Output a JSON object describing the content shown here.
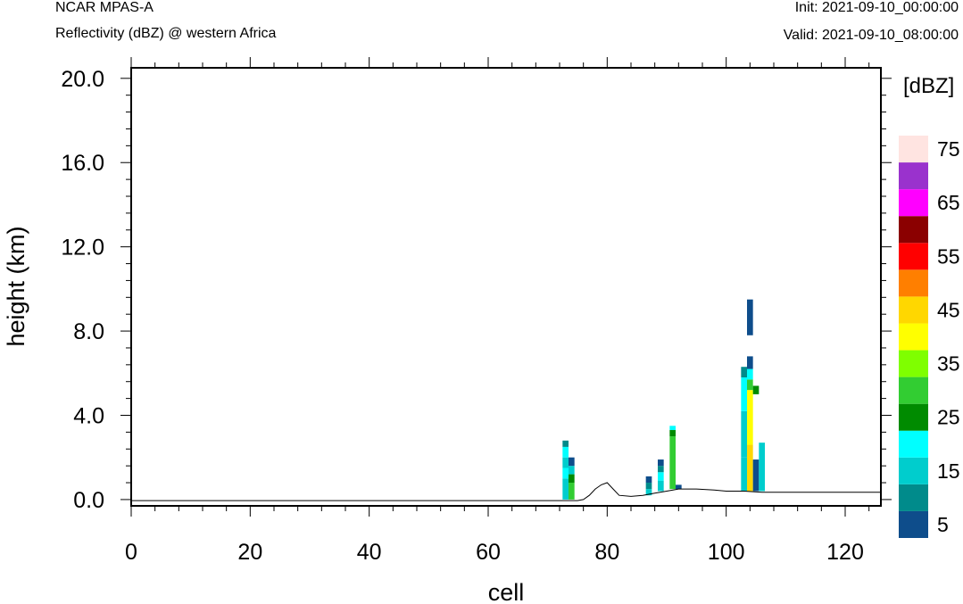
{
  "header": {
    "model": "NCAR MPAS-A",
    "title": "Reflectivity (dBZ) @ western Africa",
    "init": "Init: 2021-09-10_00:00:00",
    "valid": "Valid: 2021-09-10_08:00:00"
  },
  "chart_data": {
    "type": "heatmap",
    "xlabel": "cell",
    "ylabel": "height (km)",
    "xlim": [
      0,
      126
    ],
    "ylim": [
      -0.3,
      20.5
    ],
    "xticks": [
      0,
      20,
      40,
      60,
      80,
      100,
      120
    ],
    "xtick_labels": [
      "0",
      "20",
      "40",
      "60",
      "80",
      "100",
      "120"
    ],
    "yticks": [
      0,
      4,
      8,
      12,
      16,
      20
    ],
    "ytick_labels": [
      "0.0",
      "4.0",
      "8.0",
      "12.0",
      "16.0",
      "20.0"
    ],
    "colorbar": {
      "unit_label": "[dBZ]",
      "levels": [
        5,
        10,
        15,
        20,
        25,
        30,
        35,
        40,
        45,
        50,
        55,
        60,
        65,
        70,
        75
      ],
      "colors": [
        "#0e4d8b",
        "#008b8b",
        "#00cdcd",
        "#00ffff",
        "#008b00",
        "#32cd32",
        "#7fff00",
        "#ffff00",
        "#ffd700",
        "#ff7f00",
        "#ff0000",
        "#8b0000",
        "#ff00ff",
        "#9a32cd",
        "#ffe4e1"
      ],
      "tick_labels": [
        "5",
        "15",
        "25",
        "35",
        "45",
        "55",
        "65",
        "75"
      ]
    },
    "terrain_line": [
      [
        0,
        -0.05
      ],
      [
        75,
        -0.05
      ],
      [
        76,
        0.0
      ],
      [
        77,
        0.2
      ],
      [
        78,
        0.5
      ],
      [
        79,
        0.7
      ],
      [
        80,
        0.8
      ],
      [
        81,
        0.5
      ],
      [
        82,
        0.2
      ],
      [
        84,
        0.15
      ],
      [
        86,
        0.2
      ],
      [
        88,
        0.3
      ],
      [
        90,
        0.4
      ],
      [
        92,
        0.5
      ],
      [
        95,
        0.5
      ],
      [
        98,
        0.45
      ],
      [
        100,
        0.4
      ],
      [
        103,
        0.4
      ],
      [
        106,
        0.35
      ],
      [
        110,
        0.35
      ],
      [
        115,
        0.35
      ],
      [
        120,
        0.35
      ],
      [
        126,
        0.35
      ]
    ],
    "columns": [
      {
        "x": 73,
        "cells": [
          [
            0.0,
            1.0,
            15
          ],
          [
            1.0,
            1.5,
            20
          ],
          [
            1.5,
            2.0,
            15
          ],
          [
            2.0,
            2.5,
            20
          ],
          [
            2.5,
            2.8,
            10
          ]
        ]
      },
      {
        "x": 74,
        "cells": [
          [
            0.0,
            0.8,
            30
          ],
          [
            0.8,
            1.2,
            25
          ],
          [
            1.2,
            1.6,
            15
          ],
          [
            1.6,
            2.0,
            5
          ]
        ]
      },
      {
        "x": 87,
        "cells": [
          [
            0.2,
            0.5,
            15
          ],
          [
            0.5,
            0.8,
            10
          ],
          [
            0.8,
            1.1,
            5
          ]
        ]
      },
      {
        "x": 89,
        "cells": [
          [
            0.4,
            0.9,
            15
          ],
          [
            0.9,
            1.3,
            20
          ],
          [
            1.3,
            1.6,
            10
          ],
          [
            1.6,
            1.9,
            5
          ]
        ]
      },
      {
        "x": 91,
        "cells": [
          [
            0.5,
            3.0,
            30
          ],
          [
            3.0,
            3.3,
            25
          ],
          [
            3.3,
            3.5,
            20
          ]
        ]
      },
      {
        "x": 92,
        "cells": [
          [
            0.5,
            0.7,
            5
          ]
        ]
      },
      {
        "x": 103,
        "cells": [
          [
            0.4,
            2.0,
            15
          ],
          [
            2.0,
            4.2,
            15
          ],
          [
            4.2,
            5.8,
            20
          ],
          [
            5.8,
            6.3,
            10
          ]
        ]
      },
      {
        "x": 104,
        "cells": [
          [
            0.4,
            2.6,
            45
          ],
          [
            2.6,
            5.2,
            40
          ],
          [
            5.2,
            5.7,
            30
          ],
          [
            5.7,
            6.2,
            20
          ],
          [
            6.2,
            6.8,
            5
          ],
          [
            7.8,
            9.5,
            5
          ]
        ]
      },
      {
        "x": 105,
        "cells": [
          [
            0.4,
            1.9,
            5
          ],
          [
            5.0,
            5.4,
            25
          ]
        ]
      },
      {
        "x": 106,
        "cells": [
          [
            0.4,
            2.7,
            15
          ]
        ]
      }
    ]
  }
}
